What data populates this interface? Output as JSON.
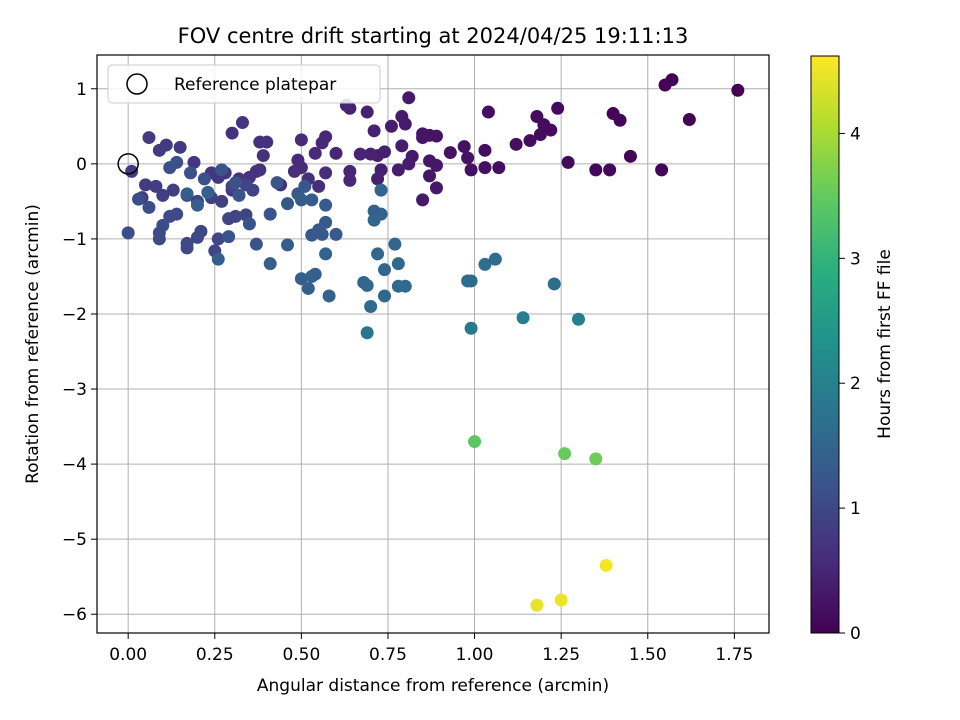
{
  "chart_data": {
    "type": "scatter",
    "title": "FOV centre drift starting at 2024/04/25 19:11:13",
    "xlabel": "Angular distance from reference (arcmin)",
    "ylabel": "Rotation from reference (arcmin)",
    "xlim": [
      -0.09,
      1.85
    ],
    "ylim": [
      -6.25,
      1.45
    ],
    "xticks": [
      "0.00",
      "0.25",
      "0.50",
      "0.75",
      "1.00",
      "1.25",
      "1.50",
      "1.75"
    ],
    "xtick_values": [
      0,
      0.25,
      0.5,
      0.75,
      1.0,
      1.25,
      1.5,
      1.75
    ],
    "yticks": [
      "−6",
      "−5",
      "−4",
      "−3",
      "−2",
      "−1",
      "0",
      "1"
    ],
    "ytick_values": [
      -6,
      -5,
      -4,
      -3,
      -2,
      -1,
      0,
      1
    ],
    "grid": true,
    "legend": {
      "position": "top-left",
      "entries": [
        "Reference platepar"
      ]
    },
    "reference_point": {
      "x": 0.0,
      "y": 0.0
    },
    "colorbar": {
      "label": "Hours from first FF file",
      "colormap": "viridis",
      "range": [
        0,
        4.62
      ],
      "ticks": [
        "0",
        "1",
        "2",
        "3",
        "4"
      ],
      "tick_values": [
        0,
        1,
        2,
        3,
        4
      ]
    },
    "points": [
      {
        "x": 1.76,
        "y": 0.98,
        "h": 0.0
      },
      {
        "x": 1.57,
        "y": 1.12,
        "h": 0.02
      },
      {
        "x": 1.55,
        "y": 1.05,
        "h": 0.03
      },
      {
        "x": 1.62,
        "y": 0.59,
        "h": 0.03
      },
      {
        "x": 1.54,
        "y": -0.08,
        "h": 0.04
      },
      {
        "x": 1.45,
        "y": 0.1,
        "h": 0.06
      },
      {
        "x": 1.4,
        "y": 0.67,
        "h": 0.06
      },
      {
        "x": 1.42,
        "y": 0.58,
        "h": 0.07
      },
      {
        "x": 1.39,
        "y": -0.08,
        "h": 0.08
      },
      {
        "x": 1.35,
        "y": -0.08,
        "h": 0.09
      },
      {
        "x": 1.27,
        "y": 0.02,
        "h": 0.11
      },
      {
        "x": 1.24,
        "y": 0.74,
        "h": 0.12
      },
      {
        "x": 1.22,
        "y": 0.45,
        "h": 0.13
      },
      {
        "x": 1.18,
        "y": 0.63,
        "h": 0.14
      },
      {
        "x": 1.2,
        "y": 0.52,
        "h": 0.14
      },
      {
        "x": 1.19,
        "y": 0.39,
        "h": 0.15
      },
      {
        "x": 1.16,
        "y": 0.31,
        "h": 0.16
      },
      {
        "x": 1.12,
        "y": 0.26,
        "h": 0.17
      },
      {
        "x": 1.04,
        "y": 0.69,
        "h": 0.18
      },
      {
        "x": 1.03,
        "y": 0.18,
        "h": 0.19
      },
      {
        "x": 1.07,
        "y": -0.05,
        "h": 0.19
      },
      {
        "x": 1.03,
        "y": -0.05,
        "h": 0.2
      },
      {
        "x": 0.99,
        "y": -0.08,
        "h": 0.21
      },
      {
        "x": 0.98,
        "y": 0.08,
        "h": 0.22
      },
      {
        "x": 0.97,
        "y": 0.23,
        "h": 0.23
      },
      {
        "x": 0.93,
        "y": 0.15,
        "h": 0.24
      },
      {
        "x": 0.89,
        "y": 0.37,
        "h": 0.25
      },
      {
        "x": 0.87,
        "y": 0.38,
        "h": 0.26
      },
      {
        "x": 0.85,
        "y": 0.35,
        "h": 0.27
      },
      {
        "x": 0.85,
        "y": 0.4,
        "h": 0.27
      },
      {
        "x": 0.87,
        "y": 0.04,
        "h": 0.28
      },
      {
        "x": 0.89,
        "y": -0.02,
        "h": 0.29
      },
      {
        "x": 0.89,
        "y": -0.32,
        "h": 0.3
      },
      {
        "x": 0.87,
        "y": -0.16,
        "h": 0.31
      },
      {
        "x": 0.85,
        "y": -0.48,
        "h": 0.32
      },
      {
        "x": 0.82,
        "y": 0.1,
        "h": 0.33
      },
      {
        "x": 0.8,
        "y": 0.53,
        "h": 0.34
      },
      {
        "x": 0.81,
        "y": 0.88,
        "h": 0.35
      },
      {
        "x": 0.79,
        "y": 0.63,
        "h": 0.35
      },
      {
        "x": 0.76,
        "y": 0.5,
        "h": 0.36
      },
      {
        "x": 0.79,
        "y": 0.24,
        "h": 0.37
      },
      {
        "x": 0.81,
        "y": 0.0,
        "h": 0.38
      },
      {
        "x": 0.78,
        "y": -0.08,
        "h": 0.39
      },
      {
        "x": 0.74,
        "y": 0.16,
        "h": 0.4
      },
      {
        "x": 0.72,
        "y": 0.11,
        "h": 0.41
      },
      {
        "x": 0.73,
        "y": -0.08,
        "h": 0.42
      },
      {
        "x": 0.72,
        "y": -0.2,
        "h": 0.43
      },
      {
        "x": 0.7,
        "y": 0.13,
        "h": 0.44
      },
      {
        "x": 0.71,
        "y": 0.44,
        "h": 0.45
      },
      {
        "x": 0.69,
        "y": 0.69,
        "h": 0.46
      },
      {
        "x": 0.64,
        "y": 0.74,
        "h": 0.47
      },
      {
        "x": 0.63,
        "y": 0.78,
        "h": 0.48
      },
      {
        "x": 0.67,
        "y": 0.13,
        "h": 0.49
      },
      {
        "x": 0.64,
        "y": -0.1,
        "h": 0.5
      },
      {
        "x": 0.64,
        "y": -0.22,
        "h": 0.51
      },
      {
        "x": 0.6,
        "y": 0.14,
        "h": 0.52
      },
      {
        "x": 0.57,
        "y": 0.36,
        "h": 0.53
      },
      {
        "x": 0.56,
        "y": 0.28,
        "h": 0.54
      },
      {
        "x": 0.54,
        "y": 0.14,
        "h": 0.55
      },
      {
        "x": 0.5,
        "y": 0.32,
        "h": 0.56
      },
      {
        "x": 0.49,
        "y": 0.05,
        "h": 0.57
      },
      {
        "x": 0.5,
        "y": -0.05,
        "h": 0.58
      },
      {
        "x": 0.48,
        "y": -0.1,
        "h": 0.59
      },
      {
        "x": 0.55,
        "y": -0.3,
        "h": 0.6
      },
      {
        "x": 0.57,
        "y": -0.12,
        "h": 0.61
      },
      {
        "x": 0.52,
        "y": -0.2,
        "h": 0.62
      },
      {
        "x": 0.44,
        "y": -0.28,
        "h": 0.63
      },
      {
        "x": 0.4,
        "y": 0.29,
        "h": 0.64
      },
      {
        "x": 0.38,
        "y": 0.29,
        "h": 0.65
      },
      {
        "x": 0.39,
        "y": 0.11,
        "h": 0.66
      },
      {
        "x": 0.38,
        "y": -0.08,
        "h": 0.67
      },
      {
        "x": 0.37,
        "y": -0.1,
        "h": 0.68
      },
      {
        "x": 0.35,
        "y": -0.18,
        "h": 0.69
      },
      {
        "x": 0.33,
        "y": 0.55,
        "h": 0.7
      },
      {
        "x": 0.3,
        "y": 0.41,
        "h": 0.7
      },
      {
        "x": 0.32,
        "y": -0.2,
        "h": 0.71
      },
      {
        "x": 0.3,
        "y": -0.35,
        "h": 0.72
      },
      {
        "x": 0.28,
        "y": -0.12,
        "h": 0.73
      },
      {
        "x": 0.26,
        "y": -0.18,
        "h": 0.74
      },
      {
        "x": 0.24,
        "y": -0.12,
        "h": 0.75
      },
      {
        "x": 0.19,
        "y": 0.02,
        "h": 0.76
      },
      {
        "x": 0.15,
        "y": 0.22,
        "h": 0.77
      },
      {
        "x": 0.11,
        "y": 0.25,
        "h": 0.78
      },
      {
        "x": 0.09,
        "y": 0.18,
        "h": 0.79
      },
      {
        "x": 0.06,
        "y": 0.35,
        "h": 0.8
      },
      {
        "x": 0.01,
        "y": -0.1,
        "h": 0.81
      },
      {
        "x": 0.04,
        "y": -0.45,
        "h": 0.82
      },
      {
        "x": 0.05,
        "y": -0.28,
        "h": 0.83
      },
      {
        "x": 0.08,
        "y": -0.3,
        "h": 0.84
      },
      {
        "x": 0.1,
        "y": -0.42,
        "h": 0.85
      },
      {
        "x": 0.13,
        "y": -0.35,
        "h": 0.86
      },
      {
        "x": 0.17,
        "y": -0.42,
        "h": 0.87
      },
      {
        "x": 0.2,
        "y": -0.5,
        "h": 0.88
      },
      {
        "x": 0.24,
        "y": -0.45,
        "h": 0.89
      },
      {
        "x": 0.27,
        "y": -0.5,
        "h": 0.9
      },
      {
        "x": 0.3,
        "y": -0.3,
        "h": 0.91
      },
      {
        "x": 0.34,
        "y": -0.28,
        "h": 0.92
      },
      {
        "x": 0.36,
        "y": -0.35,
        "h": 0.93
      },
      {
        "x": 0.34,
        "y": -0.68,
        "h": 0.94
      },
      {
        "x": 0.31,
        "y": -0.7,
        "h": 0.95
      },
      {
        "x": 0.29,
        "y": -0.73,
        "h": 0.96
      },
      {
        "x": 0.26,
        "y": -1.0,
        "h": 0.97
      },
      {
        "x": 0.25,
        "y": -1.16,
        "h": 0.98
      },
      {
        "x": 0.21,
        "y": -0.9,
        "h": 0.99
      },
      {
        "x": 0.2,
        "y": -0.98,
        "h": 1.0
      },
      {
        "x": 0.17,
        "y": -1.06,
        "h": 1.01
      },
      {
        "x": 0.17,
        "y": -1.12,
        "h": 1.02
      },
      {
        "x": 0.14,
        "y": -0.67,
        "h": 1.03
      },
      {
        "x": 0.12,
        "y": -0.7,
        "h": 1.04
      },
      {
        "x": 0.1,
        "y": -0.82,
        "h": 1.05
      },
      {
        "x": 0.09,
        "y": -0.92,
        "h": 1.06
      },
      {
        "x": 0.09,
        "y": -1.0,
        "h": 1.07
      },
      {
        "x": 0.0,
        "y": -0.92,
        "h": 1.08
      },
      {
        "x": 0.03,
        "y": -0.47,
        "h": 1.09
      },
      {
        "x": 0.06,
        "y": -0.58,
        "h": 1.1
      },
      {
        "x": 0.12,
        "y": -0.05,
        "h": 1.11
      },
      {
        "x": 0.14,
        "y": 0.02,
        "h": 1.12
      },
      {
        "x": 0.18,
        "y": -0.12,
        "h": 1.13
      },
      {
        "x": 0.22,
        "y": -0.2,
        "h": 1.14
      },
      {
        "x": 0.27,
        "y": -0.08,
        "h": 1.15
      },
      {
        "x": 0.31,
        "y": -0.25,
        "h": 1.16
      },
      {
        "x": 0.32,
        "y": -0.42,
        "h": 1.17
      },
      {
        "x": 0.29,
        "y": -0.97,
        "h": 1.18
      },
      {
        "x": 0.35,
        "y": -0.8,
        "h": 1.19
      },
      {
        "x": 0.37,
        "y": -1.07,
        "h": 1.2
      },
      {
        "x": 0.41,
        "y": -0.67,
        "h": 1.21
      },
      {
        "x": 0.43,
        "y": -0.25,
        "h": 1.22
      },
      {
        "x": 0.46,
        "y": -0.53,
        "h": 1.23
      },
      {
        "x": 0.49,
        "y": -0.4,
        "h": 1.24
      },
      {
        "x": 0.51,
        "y": -0.3,
        "h": 1.25
      },
      {
        "x": 0.53,
        "y": -0.95,
        "h": 1.26
      },
      {
        "x": 0.55,
        "y": -0.88,
        "h": 1.27
      },
      {
        "x": 0.57,
        "y": -0.78,
        "h": 1.28
      },
      {
        "x": 0.56,
        "y": -0.94,
        "h": 1.29
      },
      {
        "x": 0.6,
        "y": -0.94,
        "h": 1.3
      },
      {
        "x": 0.57,
        "y": -0.55,
        "h": 1.31
      },
      {
        "x": 0.53,
        "y": -0.48,
        "h": 1.32
      },
      {
        "x": 0.5,
        "y": -0.48,
        "h": 1.33
      },
      {
        "x": 0.46,
        "y": -1.08,
        "h": 1.34
      },
      {
        "x": 0.41,
        "y": -1.33,
        "h": 1.35
      },
      {
        "x": 0.26,
        "y": -1.27,
        "h": 1.36
      },
      {
        "x": 0.17,
        "y": -0.4,
        "h": 1.37
      },
      {
        "x": 0.2,
        "y": -0.55,
        "h": 1.38
      },
      {
        "x": 0.23,
        "y": -0.38,
        "h": 1.39
      },
      {
        "x": 0.5,
        "y": -1.53,
        "h": 1.4
      },
      {
        "x": 0.53,
        "y": -1.5,
        "h": 1.41
      },
      {
        "x": 0.54,
        "y": -1.47,
        "h": 1.42
      },
      {
        "x": 0.52,
        "y": -1.66,
        "h": 1.43
      },
      {
        "x": 0.58,
        "y": -1.76,
        "h": 1.44
      },
      {
        "x": 0.57,
        "y": -1.2,
        "h": 1.45
      },
      {
        "x": 0.71,
        "y": -0.63,
        "h": 1.46
      },
      {
        "x": 0.73,
        "y": -0.67,
        "h": 1.47
      },
      {
        "x": 0.71,
        "y": -0.75,
        "h": 1.48
      },
      {
        "x": 0.73,
        "y": -0.35,
        "h": 1.49
      },
      {
        "x": 0.77,
        "y": -1.07,
        "h": 1.5
      },
      {
        "x": 0.72,
        "y": -1.2,
        "h": 1.51
      },
      {
        "x": 0.74,
        "y": -1.41,
        "h": 1.52
      },
      {
        "x": 0.78,
        "y": -1.33,
        "h": 1.53
      },
      {
        "x": 0.68,
        "y": -1.58,
        "h": 1.54
      },
      {
        "x": 0.69,
        "y": -1.62,
        "h": 1.55
      },
      {
        "x": 0.74,
        "y": -1.76,
        "h": 1.56
      },
      {
        "x": 0.78,
        "y": -1.63,
        "h": 1.57
      },
      {
        "x": 0.8,
        "y": -1.63,
        "h": 1.58
      },
      {
        "x": 0.7,
        "y": -1.9,
        "h": 1.59
      },
      {
        "x": 0.98,
        "y": -1.56,
        "h": 1.6
      },
      {
        "x": 0.99,
        "y": -1.56,
        "h": 1.61
      },
      {
        "x": 1.03,
        "y": -1.34,
        "h": 1.62
      },
      {
        "x": 1.06,
        "y": -1.27,
        "h": 1.63
      },
      {
        "x": 1.23,
        "y": -1.6,
        "h": 1.65
      },
      {
        "x": 0.69,
        "y": -2.25,
        "h": 1.8
      },
      {
        "x": 0.99,
        "y": -2.19,
        "h": 1.85
      },
      {
        "x": 1.14,
        "y": -2.05,
        "h": 1.95
      },
      {
        "x": 1.3,
        "y": -2.07,
        "h": 2.0
      },
      {
        "x": 1.0,
        "y": -3.7,
        "h": 3.45
      },
      {
        "x": 1.26,
        "y": -3.86,
        "h": 3.52
      },
      {
        "x": 1.35,
        "y": -3.93,
        "h": 3.58
      },
      {
        "x": 1.18,
        "y": -5.88,
        "h": 4.45
      },
      {
        "x": 1.25,
        "y": -5.81,
        "h": 4.5
      },
      {
        "x": 1.38,
        "y": -5.35,
        "h": 4.55
      }
    ]
  }
}
